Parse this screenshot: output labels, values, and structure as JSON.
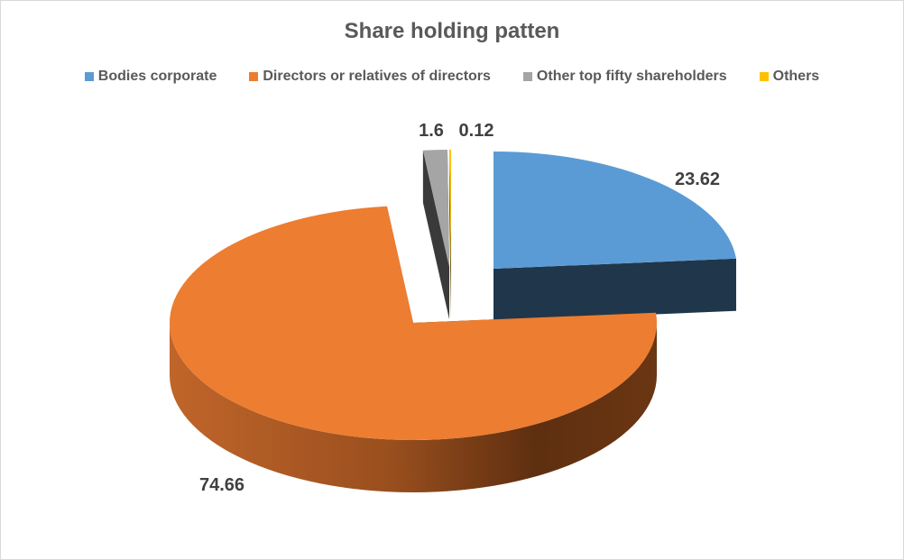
{
  "chart_data": {
    "type": "pie",
    "variant": "3d-exploded",
    "title": "Share holding patten",
    "legend_position": "top",
    "categories": [
      "Bodies corporate",
      "Directors or relatives of directors",
      "Other top fifty shareholders",
      "Others"
    ],
    "values": [
      23.62,
      74.66,
      1.6,
      0.12
    ],
    "value_labels": [
      "23.62",
      "74.66",
      "1.6",
      "0.12"
    ],
    "colors": [
      "#5b9bd5",
      "#ed7d31",
      "#a5a5a5",
      "#ffc000"
    ]
  }
}
